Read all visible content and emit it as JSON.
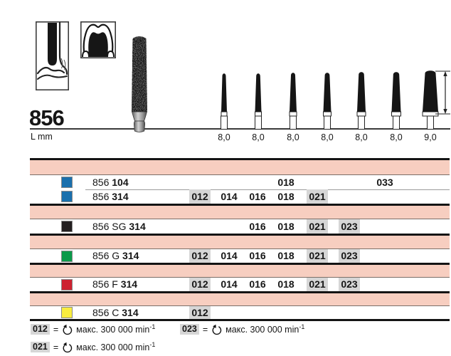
{
  "header": {
    "title": "856",
    "unit_label": "L mm",
    "illustration_icons": [
      "bur-in-sulcus-icon",
      "crown-preparation-icon",
      "diamond-bur-photo"
    ]
  },
  "profile_row": {
    "lengths": [
      "8,0",
      "8,0",
      "8,0",
      "8,0",
      "8,0",
      "8,0",
      "9,0"
    ]
  },
  "table": {
    "diameters": [
      "012",
      "014",
      "016",
      "018",
      "021",
      "023",
      "033"
    ],
    "rows": [
      {
        "marker_color": "#1a70ad",
        "prefix": "856",
        "bold": "104",
        "cells": [
          {
            "d": "018",
            "hl": false
          },
          {
            "d": "033",
            "hl": false
          }
        ]
      },
      {
        "marker_color": "#1a70ad",
        "prefix": "856",
        "bold": "314",
        "cells": [
          {
            "d": "012",
            "hl": true
          },
          {
            "d": "014",
            "hl": false
          },
          {
            "d": "016",
            "hl": false
          },
          {
            "d": "018",
            "hl": false
          },
          {
            "d": "021",
            "hl": true
          }
        ]
      },
      {
        "marker_color": "#231f20",
        "prefix": "856 SG",
        "bold": "314",
        "cells": [
          {
            "d": "016",
            "hl": false
          },
          {
            "d": "018",
            "hl": false
          },
          {
            "d": "021",
            "hl": true
          },
          {
            "d": "023",
            "hl": true
          }
        ]
      },
      {
        "marker_color": "#0b9a4a",
        "prefix": "856 G",
        "bold": "314",
        "cells": [
          {
            "d": "012",
            "hl": true
          },
          {
            "d": "014",
            "hl": false
          },
          {
            "d": "016",
            "hl": false
          },
          {
            "d": "018",
            "hl": false
          },
          {
            "d": "021",
            "hl": true
          },
          {
            "d": "023",
            "hl": true
          }
        ]
      },
      {
        "marker_color": "#cd2130",
        "prefix": "856 F",
        "bold": "314",
        "cells": [
          {
            "d": "012",
            "hl": true
          },
          {
            "d": "014",
            "hl": false
          },
          {
            "d": "016",
            "hl": false
          },
          {
            "d": "018",
            "hl": false
          },
          {
            "d": "021",
            "hl": true
          },
          {
            "d": "023",
            "hl": true
          }
        ]
      },
      {
        "marker_color": "#f9ed3f",
        "prefix": "856 C",
        "bold": "314",
        "cells": [
          {
            "d": "012",
            "hl": true
          }
        ]
      }
    ]
  },
  "legend": [
    {
      "code": "012",
      "eq": "=",
      "icon": "rotation-speed-icon",
      "text": "макс. 300 000 min",
      "sup": "-1"
    },
    {
      "code": "023",
      "eq": "=",
      "icon": "rotation-speed-icon",
      "text": "макс. 300 000 min",
      "sup": "-1"
    },
    {
      "code": "021",
      "eq": "=",
      "icon": "rotation-speed-icon",
      "text": "макс. 300 000 min",
      "sup": "-1"
    }
  ],
  "colors": {
    "band": "#f7cec0",
    "highlight": "#d6d6d6",
    "line_black": "#141414",
    "line_gray": "#7a6f68",
    "blue": "#1a70ad",
    "black": "#231f20",
    "green": "#0b9a4a",
    "red": "#cd2130",
    "yellow": "#f9ed3f"
  }
}
